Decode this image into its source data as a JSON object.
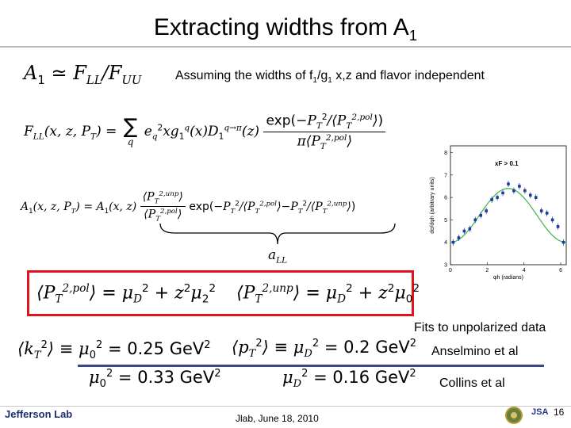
{
  "title": "Extracting widths from A",
  "title_sub": "1",
  "assumption": {
    "text_pre": "Assuming the widths of f",
    "sub1": "1",
    "slash": "/g",
    "sub2": "1",
    "text_post": " x,z and flavor independent"
  },
  "equations": {
    "a1_approx": "A₁ ≃ F_LL / F_UU",
    "f_ll": "F_LL(x, z, P_T) = Σ_q e_q² x g₁^q(x) D₁^{q→π}(z) exp(−P_T²/⟨P_T^{2,pol}⟩) / (π⟨P_T^{2,pol}⟩)",
    "a1_full": "A₁(x, z, P_T) = A₁(x, z) ⟨P_T^{2,unp}⟩/⟨P_T^{2,pol}⟩ exp(−P_T²/⟨P_T^{2,pol}⟩ − P_T²/⟨P_T^{2,unp}⟩)",
    "a_ll_label": "a_LL",
    "widths_pol": "⟨P_T^{2,pol}⟩ = μ_D² + z² μ_2²",
    "widths_unp": "⟨P_T^{2,unp}⟩ = μ_D² + z² μ_0²",
    "kt_def": "⟨k_T²⟩ ≡ μ_0² = 0.25 GeV²",
    "pt_def": "⟨p_T²⟩ ≡ μ_D² = 0.2 GeV²",
    "mu0_collins": "μ_0² = 0.33 GeV²",
    "mud_collins": "μ_D² = 0.16 GeV²"
  },
  "values": {
    "mu0_anselmino": "0.25",
    "mud_anselmino": "0.2",
    "mu0_collins": "0.33",
    "mud_collins": "0.16",
    "unit": "GeV"
  },
  "labels": {
    "fits": "Fits to unpolarized data",
    "anselmino": "Anselmino et al",
    "collins": "Collins et al"
  },
  "plot": {
    "ylabel": "dσ/dφh (arbitrary units)",
    "xlabel": "φh (radians)",
    "legend": "xF > 0.1",
    "yticks": [
      "3",
      "4",
      "5",
      "6",
      "7",
      "8"
    ],
    "xticks": [
      "0",
      "2",
      "4",
      "6"
    ],
    "points": [
      [
        0.15,
        4.0
      ],
      [
        0.45,
        4.2
      ],
      [
        0.75,
        4.5
      ],
      [
        1.05,
        4.6
      ],
      [
        1.35,
        5.0
      ],
      [
        1.65,
        5.2
      ],
      [
        1.95,
        5.4
      ],
      [
        2.25,
        5.9
      ],
      [
        2.55,
        6.0
      ],
      [
        2.85,
        6.2
      ],
      [
        3.15,
        6.6
      ],
      [
        3.45,
        6.3
      ],
      [
        3.75,
        6.5
      ],
      [
        4.05,
        6.3
      ],
      [
        4.35,
        6.1
      ],
      [
        4.65,
        6.0
      ],
      [
        4.95,
        5.4
      ],
      [
        5.25,
        5.3
      ],
      [
        5.55,
        5.0
      ],
      [
        5.85,
        4.7
      ],
      [
        6.15,
        4.0
      ]
    ],
    "ylim": [
      3,
      8.3
    ],
    "xlim": [
      0,
      6.3
    ]
  },
  "footer": {
    "logo": "Jefferson Lab",
    "date": "Jlab, June 18, 2010",
    "page": "16",
    "jsa": "JSA"
  },
  "colors": {
    "red_box": "#e0141c",
    "blue_line": "#3c4587",
    "points": "#1a3a9c",
    "fit": "#3cb44a"
  }
}
